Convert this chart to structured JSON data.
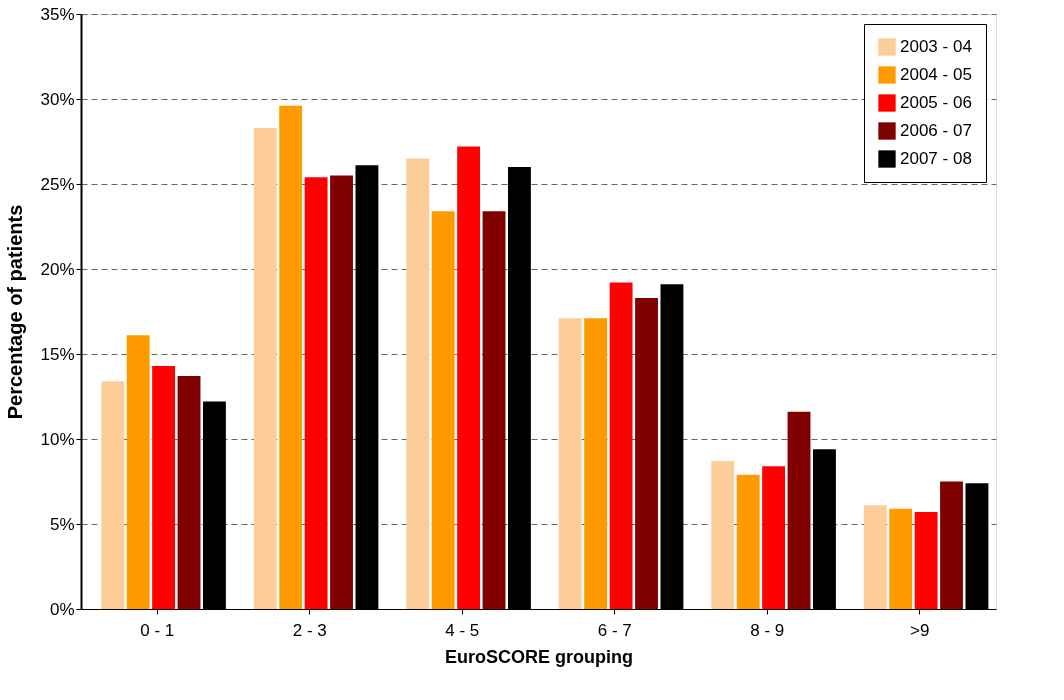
{
  "chart_data": {
    "type": "bar",
    "xlabel": "EuroSCORE grouping",
    "ylabel": "Percentage of patients",
    "categories": [
      "0 - 1",
      "2 - 3",
      "4 - 5",
      "6 - 7",
      "8 - 9",
      ">9"
    ],
    "series": [
      {
        "name": "2003 - 04",
        "color": "#fccc99",
        "values": [
          13.4,
          28.3,
          26.5,
          17.1,
          8.7,
          6.1
        ]
      },
      {
        "name": "2004 - 05",
        "color": "#ff9900",
        "values": [
          16.1,
          29.6,
          23.4,
          17.1,
          7.9,
          5.9
        ]
      },
      {
        "name": "2005 - 06",
        "color": "#ff0000",
        "values": [
          14.3,
          25.4,
          27.2,
          19.2,
          8.4,
          5.7
        ]
      },
      {
        "name": "2006 - 07",
        "color": "#800000",
        "values": [
          13.7,
          25.5,
          23.4,
          18.3,
          11.6,
          7.5
        ]
      },
      {
        "name": "2007 - 08",
        "color": "#000000",
        "values": [
          12.2,
          26.1,
          26.0,
          19.1,
          9.4,
          7.4
        ]
      }
    ],
    "ylim": [
      0,
      35
    ],
    "yticks": [
      {
        "value": 0,
        "label": "0%"
      },
      {
        "value": 5,
        "label": "5%"
      },
      {
        "value": 10,
        "label": "10%"
      },
      {
        "value": 15,
        "label": "15%"
      },
      {
        "value": 20,
        "label": "20%"
      },
      {
        "value": 25,
        "label": "25%"
      },
      {
        "value": 30,
        "label": "30%"
      },
      {
        "value": 35,
        "label": "35%"
      }
    ],
    "grid": "y",
    "legend": "top right"
  }
}
